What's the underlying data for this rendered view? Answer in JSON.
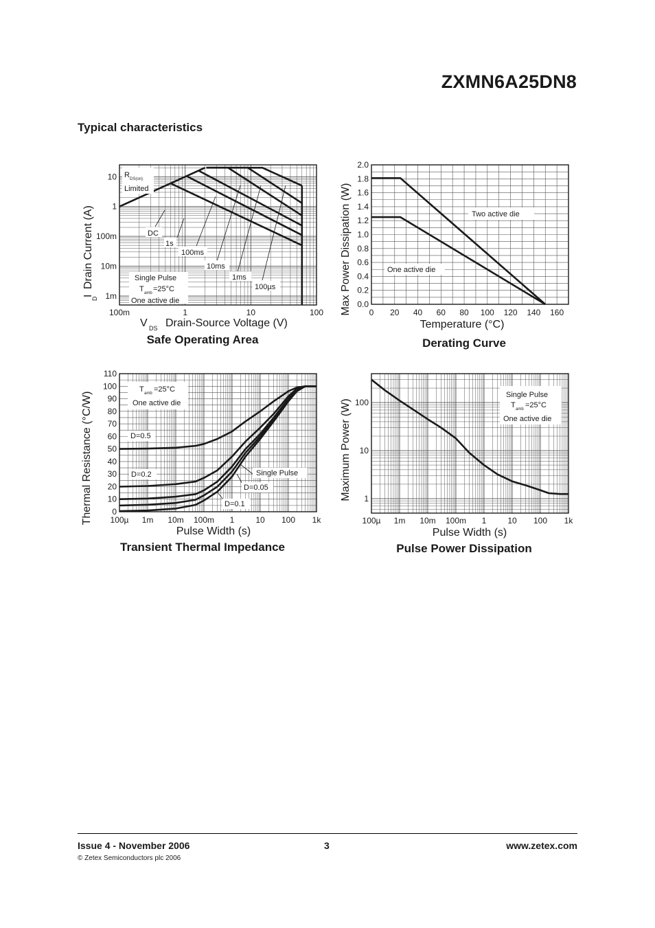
{
  "header": {
    "part_number": "ZXMN6A25DN8",
    "section_title": "Typical characteristics"
  },
  "footer": {
    "issue": "Issue 4 - November 2006",
    "page": "3",
    "website": "www.zetex.com",
    "copyright": "© Zetex Semiconductors plc 2006"
  },
  "chart_data": [
    {
      "id": "soa",
      "type": "line",
      "title": "Safe Operating Area",
      "xlabel_sym": "V",
      "xlabel_sub": "DS",
      "xlabel_text": "Drain-Source Voltage (V)",
      "ylabel_sym": "I",
      "ylabel_sub": "D",
      "ylabel_text": "Drain Current (A)",
      "x_scale": "log",
      "y_scale": "log",
      "xlim": [
        0.1,
        100
      ],
      "ylim": [
        0.0005,
        25
      ],
      "x_ticks": [
        {
          "v": 0.1,
          "label": "100m"
        },
        {
          "v": 1,
          "label": "1"
        },
        {
          "v": 10,
          "label": "10"
        },
        {
          "v": 100,
          "label": "100"
        }
      ],
      "y_ticks": [
        {
          "v": 0.001,
          "label": "1m"
        },
        {
          "v": 0.01,
          "label": "10m"
        },
        {
          "v": 0.1,
          "label": "100m"
        },
        {
          "v": 1,
          "label": "1"
        },
        {
          "v": 10,
          "label": "10"
        }
      ],
      "grid": true,
      "series": [
        {
          "name": "RDS(on) Limited",
          "x": [
            0.1,
            2
          ],
          "y": [
            1,
            20
          ]
        },
        {
          "name": "DC",
          "x": [
            0.6,
            60
          ],
          "y": [
            6,
            0.05
          ]
        },
        {
          "name": "1s",
          "x": [
            1.05,
            60
          ],
          "y": [
            10.5,
            0.11
          ]
        },
        {
          "name": "100ms",
          "x": [
            1.6,
            60
          ],
          "y": [
            16,
            0.23
          ]
        },
        {
          "name": "10ms",
          "x": [
            2.1,
            4.5,
            60
          ],
          "y": [
            20,
            20,
            0.5
          ]
        },
        {
          "name": "1ms",
          "x": [
            2.1,
            9,
            60
          ],
          "y": [
            20,
            20,
            1.3
          ]
        },
        {
          "name": "100µs",
          "x": [
            2.1,
            15,
            60
          ],
          "y": [
            20,
            20,
            5
          ]
        },
        {
          "name": "VDS max",
          "x": [
            60,
            60
          ],
          "y": [
            0.0005,
            5
          ]
        }
      ],
      "annotations": {
        "rds_r": "R",
        "rds_sub": "DS(on)",
        "rds_limited": "Limited",
        "dc": "DC",
        "s1": "1s",
        "ms100": "100ms",
        "ms10": "10ms",
        "ms1": "1ms",
        "us100": "100µs",
        "single_pulse": "Single Pulse",
        "tamb_t": "T",
        "tamb_sub": "amb",
        "tamb_val": "=25°C",
        "one_die": "One active die"
      }
    },
    {
      "id": "derating",
      "type": "line",
      "title": "Derating Curve",
      "xlabel": "Temperature (°C)",
      "ylabel": "Max Power Dissipation (W)",
      "xlim": [
        0,
        170
      ],
      "ylim": [
        0,
        2.0
      ],
      "x_ticks": [
        0,
        20,
        40,
        60,
        80,
        100,
        120,
        140,
        160
      ],
      "y_ticks": [
        "0.0",
        "0.2",
        "0.4",
        "0.6",
        "0.8",
        "1.0",
        "1.2",
        "1.4",
        "1.6",
        "1.8",
        "2.0"
      ],
      "grid": true,
      "series": [
        {
          "name": "Two active die",
          "x": [
            0,
            25,
            150
          ],
          "y": [
            1.81,
            1.81,
            0
          ]
        },
        {
          "name": "One active die",
          "x": [
            0,
            25,
            150
          ],
          "y": [
            1.25,
            1.25,
            0
          ]
        }
      ]
    },
    {
      "id": "thermal",
      "type": "line",
      "title": "Transient Thermal Impedance",
      "xlabel": "Pulse Width (s)",
      "ylabel": "Thermal Resistance (°C/W)",
      "x_scale": "log",
      "xlim": [
        0.0001,
        1000
      ],
      "ylim": [
        0,
        110
      ],
      "x_ticks": [
        {
          "v": 0.0001,
          "label": "100µ"
        },
        {
          "v": 0.001,
          "label": "1m"
        },
        {
          "v": 0.01,
          "label": "10m"
        },
        {
          "v": 0.1,
          "label": "100m"
        },
        {
          "v": 1,
          "label": "1"
        },
        {
          "v": 10,
          "label": "10"
        },
        {
          "v": 100,
          "label": "100"
        },
        {
          "v": 1000,
          "label": "1k"
        }
      ],
      "y_ticks": [
        0,
        10,
        20,
        30,
        40,
        50,
        60,
        70,
        80,
        90,
        100,
        110
      ],
      "grid": true,
      "series": [
        {
          "name": "D=0.5",
          "x": [
            0.0001,
            0.001,
            0.01,
            0.05,
            0.1,
            0.3,
            1,
            3,
            10,
            30,
            100,
            200,
            400,
            1000
          ],
          "y": [
            50,
            50.3,
            51,
            52.5,
            54,
            58,
            64,
            72,
            80,
            88,
            96,
            99,
            100,
            100
          ]
        },
        {
          "name": "D=0.2",
          "x": [
            0.0001,
            0.001,
            0.01,
            0.05,
            0.1,
            0.3,
            1,
            3,
            10,
            30,
            100,
            200,
            400,
            1000
          ],
          "y": [
            20,
            20.5,
            22,
            24,
            27,
            33,
            44,
            56,
            67,
            78,
            92,
            98,
            100,
            100
          ]
        },
        {
          "name": "D=0.1",
          "x": [
            0.0001,
            0.001,
            0.01,
            0.05,
            0.1,
            0.3,
            1,
            3,
            10,
            30,
            100,
            200,
            400,
            1000
          ],
          "y": [
            10,
            10.5,
            12,
            14,
            17,
            24,
            36,
            50,
            62,
            75,
            90,
            97,
            100,
            100
          ]
        },
        {
          "name": "D=0.05",
          "x": [
            0.0001,
            0.001,
            0.01,
            0.05,
            0.1,
            0.3,
            1,
            3,
            10,
            30,
            100,
            200,
            400,
            1000
          ],
          "y": [
            5,
            5.6,
            7,
            9.5,
            13,
            20,
            32,
            47,
            60,
            73,
            89,
            97,
            100,
            100
          ]
        },
        {
          "name": "Single Pulse",
          "x": [
            0.0001,
            0.001,
            0.01,
            0.05,
            0.1,
            0.3,
            1,
            3,
            10,
            30,
            100,
            200,
            400,
            1000
          ],
          "y": [
            0.5,
            1,
            2.5,
            5.5,
            9,
            16,
            28,
            44,
            58,
            72,
            88,
            96,
            100,
            100
          ]
        }
      ],
      "annotations": {
        "tamb_t": "T",
        "tamb_sub": "amb",
        "tamb_val": "=25°C",
        "one_die": "One active die",
        "d05": "D=0.5",
        "d02": "D=0.2",
        "d01": "D=0.1",
        "d005": "D=0.05",
        "single_pulse": "Single Pulse"
      }
    },
    {
      "id": "pulse",
      "type": "line",
      "title": "Pulse Power Dissipation",
      "xlabel": "Pulse Width (s)",
      "ylabel": "Maximum Power (W)",
      "x_scale": "log",
      "y_scale": "log",
      "xlim": [
        0.0001,
        1000
      ],
      "ylim": [
        0.5,
        400
      ],
      "x_ticks": [
        {
          "v": 0.0001,
          "label": "100µ"
        },
        {
          "v": 0.001,
          "label": "1m"
        },
        {
          "v": 0.01,
          "label": "10m"
        },
        {
          "v": 0.1,
          "label": "100m"
        },
        {
          "v": 1,
          "label": "1"
        },
        {
          "v": 10,
          "label": "10"
        },
        {
          "v": 100,
          "label": "100"
        },
        {
          "v": 1000,
          "label": "1k"
        }
      ],
      "y_ticks": [
        {
          "v": 1,
          "label": "1"
        },
        {
          "v": 10,
          "label": "10"
        },
        {
          "v": 100,
          "label": "100"
        }
      ],
      "grid": true,
      "series": [
        {
          "name": "Single Pulse",
          "x": [
            0.0001,
            0.0003,
            0.001,
            0.003,
            0.01,
            0.03,
            0.1,
            0.3,
            1,
            3,
            10,
            30,
            100,
            200,
            500,
            1000
          ],
          "y": [
            300,
            180,
            110,
            72,
            45,
            30,
            18,
            9,
            5,
            3.2,
            2.3,
            1.9,
            1.5,
            1.3,
            1.25,
            1.25
          ]
        }
      ],
      "annotations": {
        "single_pulse": "Single Pulse",
        "tamb_t": "T",
        "tamb_sub": "amb",
        "tamb_val": "=25°C",
        "one_die": "One active die"
      }
    }
  ]
}
